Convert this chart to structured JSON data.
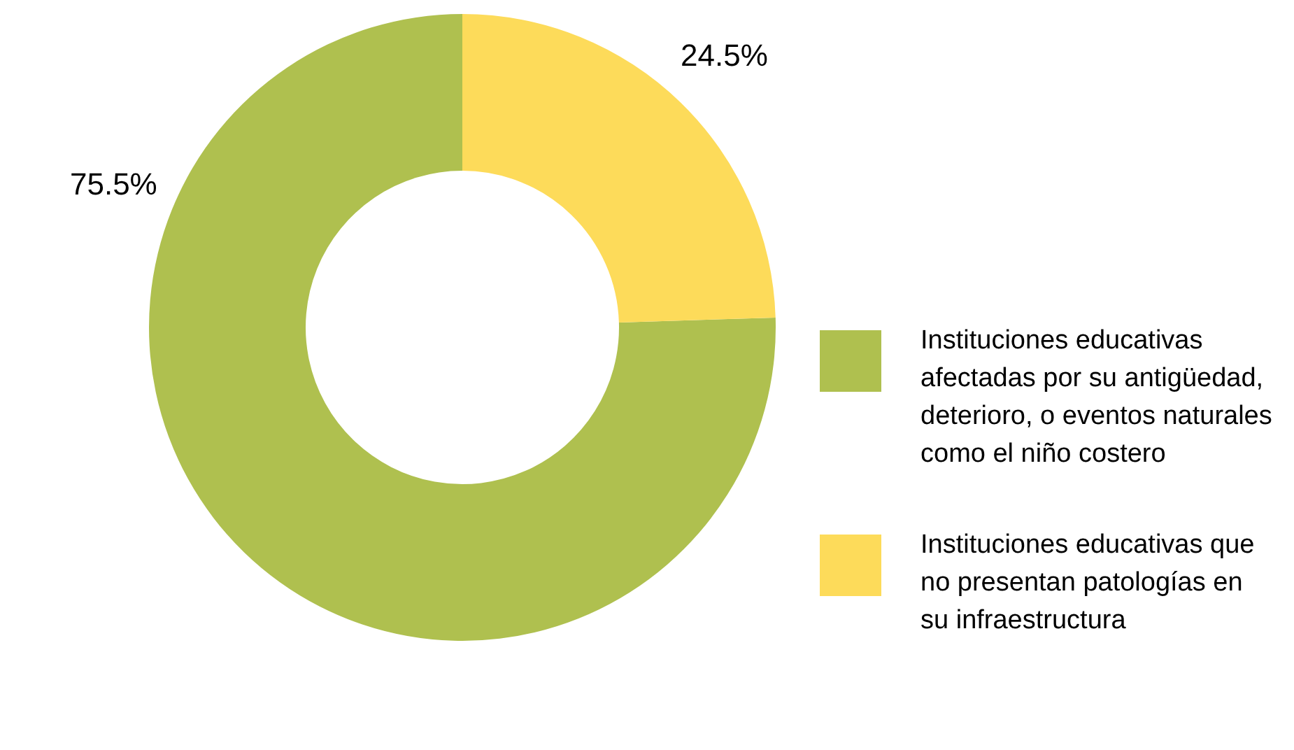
{
  "chart_data": {
    "type": "donut",
    "categories": [
      "Instituciones educativas afectadas por su antigüedad, deterioro, o eventos naturales como el niño costero",
      "Instituciones educativas que no presentan patologías en su infraestructura"
    ],
    "values": [
      75.5,
      24.5
    ],
    "colors": [
      "#afc04f",
      "#fddb5a"
    ],
    "value_labels": [
      "75.5%",
      "24.5%"
    ],
    "legend": "right"
  }
}
